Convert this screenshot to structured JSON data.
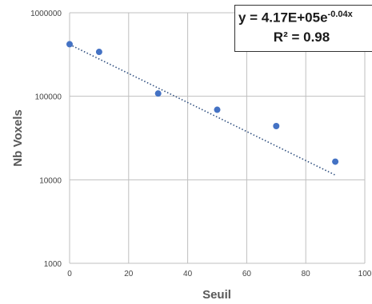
{
  "chart_data": {
    "type": "scatter",
    "xlabel": "Seuil",
    "ylabel": "Nb Voxels",
    "xlim": [
      0,
      100
    ],
    "ylim": [
      1000,
      1000000
    ],
    "yscale": "log",
    "grid": true,
    "x_ticks": [
      "0",
      "20",
      "40",
      "60",
      "80",
      "100"
    ],
    "y_ticks": [
      "1000",
      "10000",
      "100000",
      "1000000"
    ],
    "series": [
      {
        "x": [
          0,
          10,
          30,
          50,
          70,
          90
        ],
        "y": [
          420000,
          340000,
          108000,
          69000,
          44000,
          16500
        ],
        "color": "#4472c4"
      }
    ],
    "trendline": {
      "type": "exponential",
      "a": 417000,
      "b": -0.04,
      "style": "dotted",
      "color": "#2f4f7f"
    },
    "annotation": {
      "eq_prefix": "y = 4.17E+05e",
      "eq_exponent": "-0.04x",
      "r2_text": "R² = 0.98"
    }
  }
}
